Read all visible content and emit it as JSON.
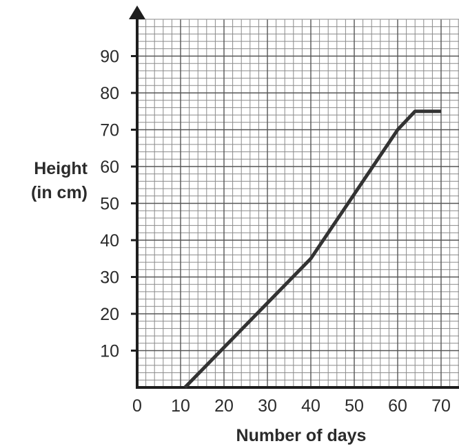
{
  "chart_data": {
    "type": "line",
    "title": "",
    "xlabel": "Number of days",
    "ylabel": [
      "Height",
      "(in cm)"
    ],
    "xlim": [
      0,
      74
    ],
    "ylim": [
      0,
      99
    ],
    "x_ticks": [
      0,
      10,
      20,
      30,
      40,
      50,
      60,
      70
    ],
    "y_ticks": [
      10,
      20,
      30,
      40,
      50,
      60,
      70,
      80,
      90
    ],
    "grid": true,
    "legend": "none",
    "series": [
      {
        "x": [
          11,
          40,
          60,
          64,
          70
        ],
        "y": [
          0,
          35,
          70,
          75,
          75
        ]
      }
    ]
  },
  "colors": {
    "line": "#333333",
    "axis": "#1e1e1e",
    "grid": "#8a8a8a",
    "text": "#2b2b2b"
  }
}
